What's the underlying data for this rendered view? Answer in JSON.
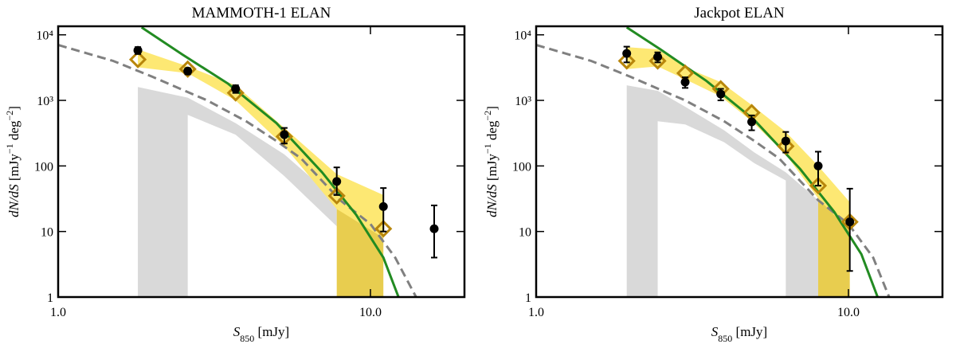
{
  "chart_data": [
    {
      "type": "scatter",
      "title": "MAMMOTH-1 ELAN",
      "x_label": [
        {
          "t": "S"
        },
        {
          "t": "850",
          "sub": true
        },
        {
          "t": " [mJy]"
        }
      ],
      "y_label": [
        {
          "t": "dN/dS"
        },
        {
          "t": " [mJy"
        },
        {
          "t": "−1",
          "sup": true
        },
        {
          "t": " deg"
        },
        {
          "t": "−2",
          "sup": true
        },
        {
          "t": "]"
        }
      ],
      "log_x": true,
      "log_y": true,
      "xlim": [
        1,
        20
      ],
      "ylim": [
        1,
        13500
      ],
      "xticks": [
        {
          "value": 1,
          "label": "1.0"
        },
        {
          "value": 10,
          "label": "10.0"
        }
      ],
      "yticks": [
        1,
        10,
        100,
        {
          "value": 1000,
          "label": "10³"
        },
        {
          "value": 10000,
          "label": "10⁴"
        }
      ],
      "field_region": {
        "color": "#d9d9d9",
        "x": [
          1.8,
          2.6,
          2.6,
          3.7,
          5.3,
          7.8
        ],
        "upper": [
          1600,
          1100,
          1100,
          450,
          150,
          30
        ],
        "lower": [
          1,
          1,
          600,
          300,
          70,
          12
        ]
      },
      "fill_region": {
        "color": "#e8cd4f",
        "x": [
          7.8,
          11
        ],
        "upper": [
          35,
          11
        ],
        "lower": [
          1,
          1
        ]
      },
      "band": {
        "color": "#fde873",
        "x": [
          1.8,
          2.6,
          3.7,
          5.3,
          7.8,
          11
        ],
        "upper": [
          6000,
          3300,
          1700,
          380,
          75,
          36
        ],
        "lower": [
          3200,
          2600,
          1000,
          200,
          22,
          8
        ]
      },
      "dashed_curve": {
        "color": "#808080",
        "x": [
          1,
          1.5,
          2,
          3,
          4,
          5,
          6,
          8,
          10,
          12,
          14
        ],
        "values": [
          7000,
          4000,
          2300,
          1000,
          480,
          240,
          130,
          30,
          13,
          4,
          1
        ]
      },
      "model_curve": {
        "color": "#228b22",
        "x": [
          1.85,
          2.5,
          3.5,
          5,
          7,
          9,
          11,
          12.3
        ],
        "values": [
          13000,
          5000,
          1800,
          450,
          80,
          18,
          4,
          1
        ]
      },
      "diamonds": {
        "color": "#b8860b",
        "x": [
          1.8,
          2.6,
          3.7,
          5.3,
          7.8,
          11
        ],
        "values": [
          4200,
          3000,
          1300,
          280,
          35,
          11
        ]
      },
      "points": {
        "color": "#000000",
        "x": [
          1.8,
          2.6,
          3.7,
          5.3,
          7.8,
          11,
          16
        ],
        "values": [
          5800,
          2800,
          1500,
          300,
          58,
          24,
          11
        ],
        "err_low": [
          700,
          300,
          200,
          80,
          22,
          14,
          7
        ],
        "err_high": [
          700,
          300,
          200,
          80,
          37,
          22,
          14
        ]
      }
    },
    {
      "type": "scatter",
      "title": "Jackpot ELAN",
      "x_label": [
        {
          "t": "S"
        },
        {
          "t": "850",
          "sub": true
        },
        {
          "t": " [mJy]"
        }
      ],
      "y_label": [
        {
          "t": "dN/dS"
        },
        {
          "t": " [mJy"
        },
        {
          "t": "−1",
          "sup": true
        },
        {
          "t": " deg"
        },
        {
          "t": "−2",
          "sup": true
        },
        {
          "t": "]"
        }
      ],
      "log_x": true,
      "log_y": true,
      "xlim": [
        1,
        20
      ],
      "ylim": [
        1,
        13500
      ],
      "xticks": [
        {
          "value": 1,
          "label": "1.0"
        },
        {
          "value": 10,
          "label": "10.0"
        }
      ],
      "yticks": [
        1,
        10,
        100,
        {
          "value": 1000,
          "label": "10³"
        },
        {
          "value": 10000,
          "label": "10⁴"
        }
      ],
      "field_region": {
        "color": "#d9d9d9",
        "x": [
          1.95,
          2.45,
          2.45,
          3,
          4,
          5,
          6.3,
          6.3,
          8
        ],
        "upper": [
          1700,
          1400,
          1400,
          800,
          350,
          160,
          80,
          80,
          30
        ],
        "lower": [
          1,
          1,
          480,
          430,
          230,
          110,
          60,
          1,
          1
        ]
      },
      "fill_region": {
        "color": "#e8cd4f",
        "x": [
          8,
          10.1
        ],
        "upper": [
          40,
          14
        ],
        "lower": [
          1,
          1
        ]
      },
      "band": {
        "color": "#fde873",
        "x": [
          1.95,
          2.45,
          3,
          3.9,
          4.9,
          6.3,
          8,
          10.1
        ],
        "upper": [
          6500,
          6000,
          3200,
          1900,
          850,
          330,
          100,
          28
        ],
        "lower": [
          3000,
          3300,
          2100,
          1150,
          480,
          150,
          32,
          10
        ]
      },
      "dashed_curve": {
        "color": "#808080",
        "x": [
          1,
          1.5,
          2,
          3,
          4,
          5,
          6,
          8,
          10,
          12,
          13.5
        ],
        "values": [
          7000,
          4000,
          2300,
          1000,
          480,
          240,
          130,
          30,
          13,
          4,
          1
        ]
      },
      "model_curve": {
        "color": "#228b22",
        "x": [
          1.95,
          2.5,
          3.5,
          5,
          7,
          9,
          11,
          12.4
        ],
        "values": [
          13000,
          6000,
          2000,
          500,
          90,
          20,
          4.5,
          1
        ]
      },
      "diamonds": {
        "color": "#b8860b",
        "x": [
          1.95,
          2.45,
          3,
          3.9,
          4.9,
          6.3,
          8,
          10.1
        ],
        "values": [
          4000,
          4000,
          2600,
          1500,
          650,
          200,
          50,
          14
        ]
      },
      "points": {
        "color": "#000000",
        "x": [
          1.95,
          2.45,
          3,
          3.9,
          4.9,
          6.3,
          8,
          10.1
        ],
        "values": [
          5200,
          4600,
          1900,
          1250,
          470,
          240,
          100,
          14
        ],
        "err_low": [
          1400,
          800,
          350,
          250,
          120,
          80,
          50,
          11.5
        ],
        "err_high": [
          1400,
          800,
          350,
          250,
          120,
          90,
          65,
          31
        ]
      }
    }
  ]
}
